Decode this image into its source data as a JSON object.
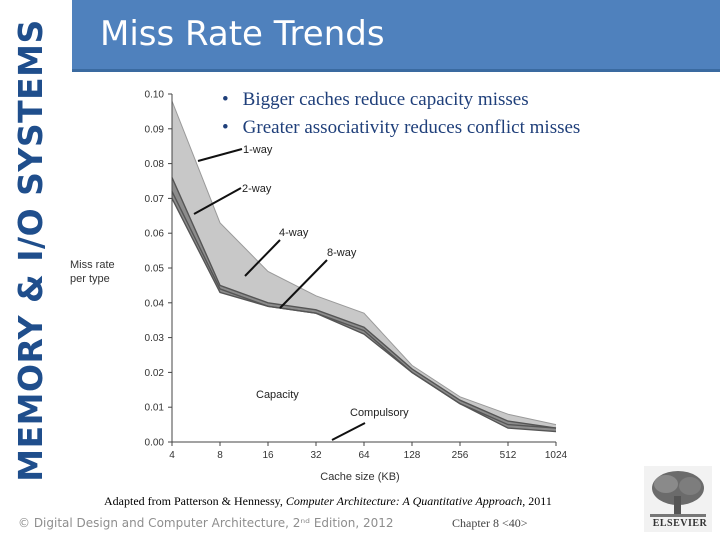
{
  "slide": {
    "side_title": "MEMORY & I/O SYSTEMS",
    "title": "Miss Rate Trends",
    "bullets": [
      "Bigger caches reduce  capacity misses",
      "Greater associativity reduces conflict misses"
    ],
    "credit_prefix": "Adapted from Patterson & Hennessy, ",
    "credit_book": "Computer Architecture: A Quantitative Approach",
    "credit_suffix": ", 2011",
    "footer_copyright": "© Digital Design and Computer Architecture, 2ⁿᵈ Edition, 2012",
    "footer_chapter": "Chapter 8 <40>",
    "logo_text": "ELSEVIER"
  },
  "chart_data": {
    "type": "area",
    "title": "",
    "xlabel": "Cache size (KB)",
    "ylabel": "Miss rate per type",
    "x": [
      "4",
      "8",
      "16",
      "32",
      "64",
      "128",
      "256",
      "512",
      "1024"
    ],
    "ylim": [
      0,
      0.1
    ],
    "yticks": [
      "0.00",
      "0.01",
      "0.02",
      "0.03",
      "0.04",
      "0.05",
      "0.06",
      "0.07",
      "0.08",
      "0.09",
      "0.10"
    ],
    "grid": false,
    "series": [
      {
        "name": "1-way",
        "values": [
          0.098,
          0.063,
          0.049,
          0.042,
          0.037,
          0.022,
          0.013,
          0.008,
          0.005
        ]
      },
      {
        "name": "2-way",
        "values": [
          0.076,
          0.045,
          0.04,
          0.038,
          0.033,
          0.021,
          0.012,
          0.006,
          0.004
        ]
      },
      {
        "name": "4-way",
        "values": [
          0.072,
          0.044,
          0.039,
          0.037,
          0.032,
          0.02,
          0.011,
          0.005,
          0.004
        ]
      },
      {
        "name": "8-way",
        "values": [
          0.07,
          0.043,
          0.039,
          0.037,
          0.031,
          0.02,
          0.011,
          0.004,
          0.003
        ]
      }
    ],
    "annotations": [
      "1-way",
      "2-way",
      "4-way",
      "8-way",
      "Capacity",
      "Compulsory"
    ],
    "colors": {
      "band": "#c8c8c8",
      "line": "#6e6e6e",
      "dark": "#555555"
    }
  }
}
